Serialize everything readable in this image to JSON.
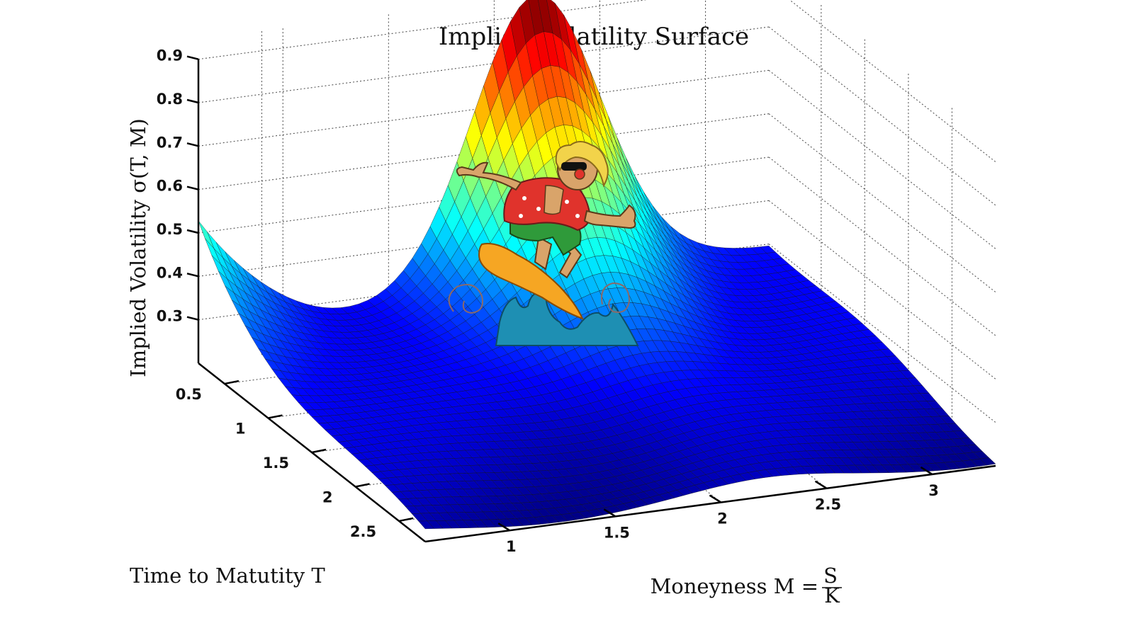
{
  "chart_data": {
    "type": "surface",
    "title": "Implied Volatility Surface",
    "zlabel": "Implied Volatility σ(T, M)",
    "xlabel": "Time to Matutity T",
    "ylabel": "Moneyness M = S/K",
    "ylabel_prefix": "Moneyness M = ",
    "ylabel_num": "S",
    "ylabel_den": "K",
    "z_ticks": [
      "0.3",
      "0.4",
      "0.5",
      "0.6",
      "0.7",
      "0.8",
      "0.9"
    ],
    "t_ticks": [
      "0.5",
      "1",
      "1.5",
      "2",
      "2.5"
    ],
    "m_ticks": [
      "1",
      "1.5",
      "2",
      "2.5",
      "3"
    ],
    "t_range": [
      0.2,
      2.8
    ],
    "m_range": [
      0.6,
      3.3
    ],
    "z_range": [
      0.2,
      0.95
    ],
    "grid": true,
    "colormap": "jet",
    "surface_points": [
      {
        "T": 0.2,
        "M": 0.6,
        "iv": 0.52
      },
      {
        "T": 0.2,
        "M": 1.0,
        "iv": 0.47
      },
      {
        "T": 0.2,
        "M": 1.5,
        "iv": 0.5
      },
      {
        "T": 0.2,
        "M": 2.0,
        "iv": 0.68
      },
      {
        "T": 0.2,
        "M": 2.25,
        "iv": 0.92
      },
      {
        "T": 0.2,
        "M": 2.5,
        "iv": 0.62
      },
      {
        "T": 0.2,
        "M": 3.0,
        "iv": 0.38
      },
      {
        "T": 0.2,
        "M": 3.3,
        "iv": 0.3
      },
      {
        "T": 1.5,
        "M": 0.6,
        "iv": 0.31
      },
      {
        "T": 1.5,
        "M": 2.0,
        "iv": 0.27
      },
      {
        "T": 2.8,
        "M": 0.6,
        "iv": 0.22
      },
      {
        "T": 2.8,
        "M": 3.3,
        "iv": 0.2
      }
    ],
    "illustration": "surfer-clipart"
  }
}
